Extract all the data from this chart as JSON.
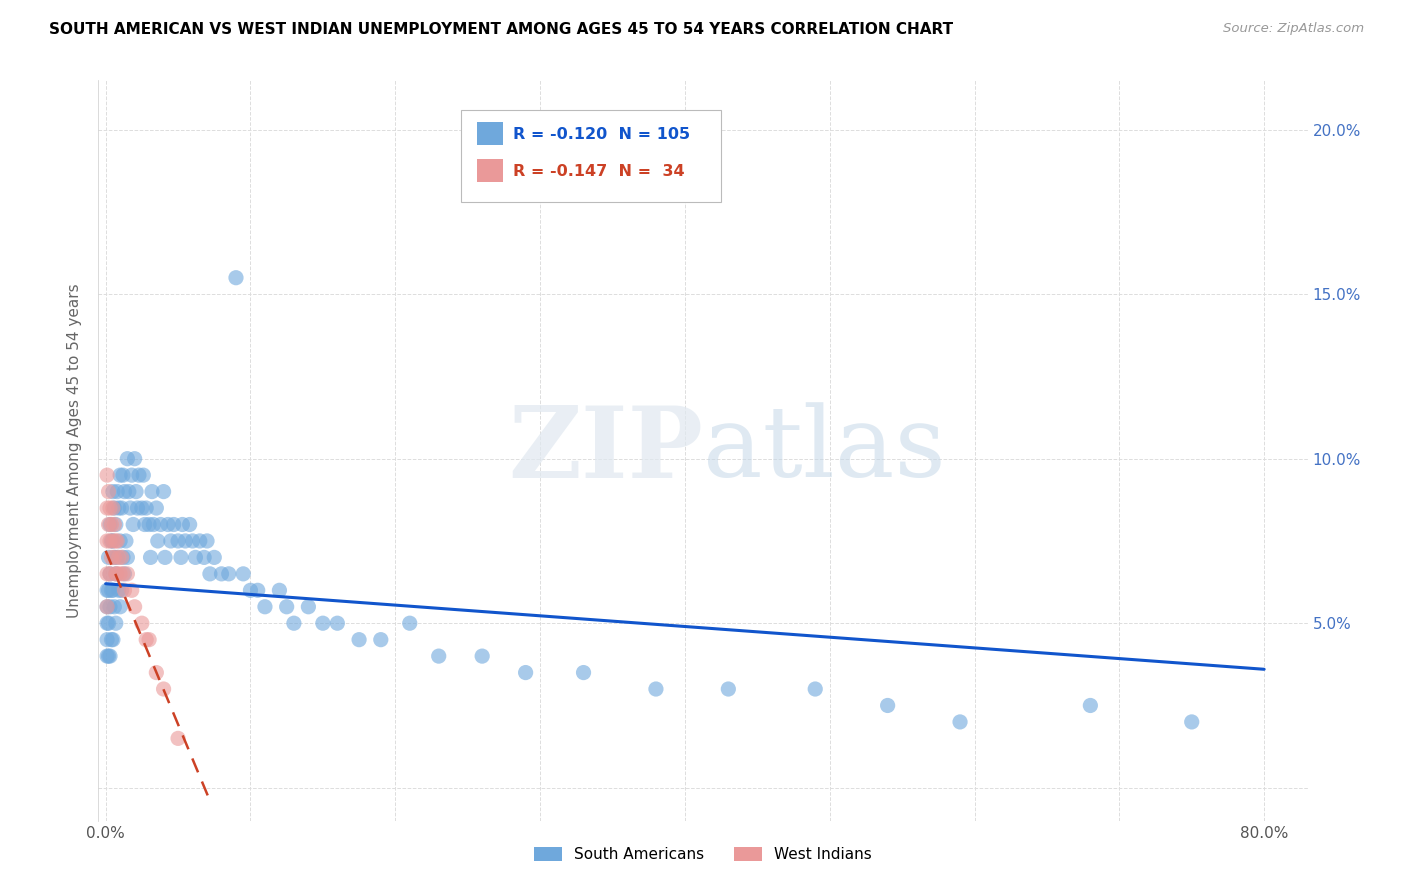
{
  "title": "SOUTH AMERICAN VS WEST INDIAN UNEMPLOYMENT AMONG AGES 45 TO 54 YEARS CORRELATION CHART",
  "source": "Source: ZipAtlas.com",
  "ylabel": "Unemployment Among Ages 45 to 54 years",
  "xlim": [
    -0.005,
    0.83
  ],
  "ylim": [
    -0.01,
    0.215
  ],
  "south_american_color": "#6fa8dc",
  "west_indian_color": "#ea9999",
  "trend_sa_color": "#1155cc",
  "trend_wi_color": "#cc4125",
  "r_sa": -0.12,
  "n_sa": 105,
  "r_wi": -0.147,
  "n_wi": 34,
  "sa_trend_x0": 0.0,
  "sa_trend_y0": 0.062,
  "sa_trend_x1": 0.8,
  "sa_trend_y1": 0.036,
  "wi_trend_x0": 0.0,
  "wi_trend_y0": 0.072,
  "wi_trend_x1": 0.073,
  "wi_trend_y1": -0.005,
  "x_ticks": [
    0.0,
    0.1,
    0.2,
    0.3,
    0.4,
    0.5,
    0.6,
    0.7,
    0.8
  ],
  "x_tick_labels": [
    "0.0%",
    "",
    "",
    "",
    "",
    "",
    "",
    "",
    "80.0%"
  ],
  "y_ticks": [
    0.0,
    0.05,
    0.1,
    0.15,
    0.2
  ],
  "y_tick_labels_right": [
    "",
    "5.0%",
    "10.0%",
    "15.0%",
    "20.0%"
  ],
  "grid_color": "#dddddd",
  "background_color": "#ffffff",
  "title_color": "#000000",
  "source_color": "#999999",
  "ylabel_color": "#666666"
}
